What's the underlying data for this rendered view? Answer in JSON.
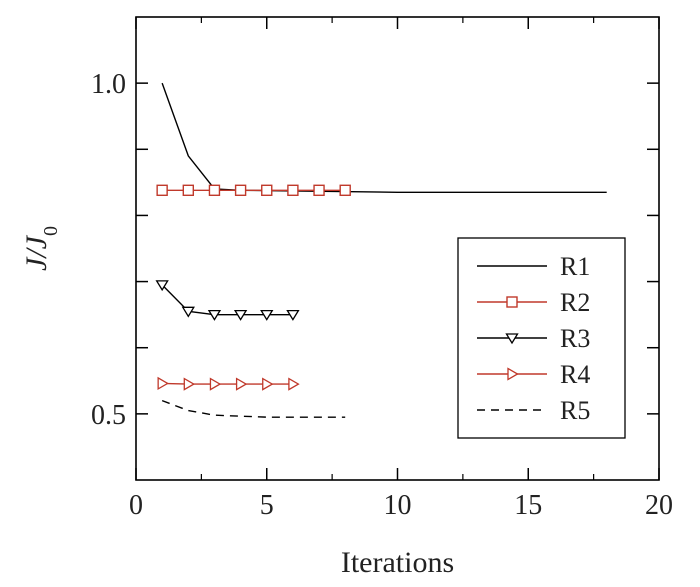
{
  "chart_data": {
    "type": "line",
    "xlabel": "Iterations",
    "ylabel": {
      "main": "J/J",
      "sub": "0"
    },
    "xlim": [
      0,
      20
    ],
    "ylim": [
      0.4,
      1.1
    ],
    "x_ticks": [
      0,
      5,
      10,
      15,
      20
    ],
    "x_tick_labels": [
      "0",
      "5",
      "10",
      "15",
      "20"
    ],
    "y_tick_labels": [
      {
        "value": 0.5,
        "label": "0.5"
      },
      {
        "value": 1.0,
        "label": "1.0"
      }
    ],
    "y_minor_ticks": [
      0.6,
      0.7,
      0.8,
      0.9
    ],
    "grid": false,
    "legend_position": "lower-right",
    "series": [
      {
        "name": "R1",
        "color": "#000000",
        "marker": "none",
        "dash": "solid",
        "points": [
          [
            1,
            1.0
          ],
          [
            2,
            0.89
          ],
          [
            3,
            0.84
          ],
          [
            4,
            0.838
          ],
          [
            6,
            0.837
          ],
          [
            10,
            0.835
          ],
          [
            14,
            0.835
          ],
          [
            18,
            0.835
          ]
        ]
      },
      {
        "name": "R2",
        "color": "#c0392b",
        "marker": "square",
        "dash": "solid",
        "points": [
          [
            1,
            0.838
          ],
          [
            2,
            0.838
          ],
          [
            3,
            0.838
          ],
          [
            4,
            0.838
          ],
          [
            5,
            0.838
          ],
          [
            6,
            0.838
          ],
          [
            7,
            0.838
          ],
          [
            8,
            0.838
          ]
        ]
      },
      {
        "name": "R3",
        "color": "#000000",
        "marker": "triangle-down",
        "dash": "solid",
        "points": [
          [
            1,
            0.695
          ],
          [
            2,
            0.655
          ],
          [
            3,
            0.65
          ],
          [
            4,
            0.65
          ],
          [
            5,
            0.65
          ],
          [
            6,
            0.65
          ]
        ]
      },
      {
        "name": "R4",
        "color": "#c0392b",
        "marker": "triangle-right",
        "dash": "solid",
        "points": [
          [
            1,
            0.546
          ],
          [
            2,
            0.545
          ],
          [
            3,
            0.545
          ],
          [
            4,
            0.545
          ],
          [
            5,
            0.545
          ],
          [
            6,
            0.545
          ]
        ]
      },
      {
        "name": "R5",
        "color": "#000000",
        "marker": "none",
        "dash": "dashed",
        "points": [
          [
            1,
            0.52
          ],
          [
            2,
            0.505
          ],
          [
            3,
            0.498
          ],
          [
            5,
            0.495
          ],
          [
            8,
            0.495
          ]
        ]
      }
    ]
  }
}
